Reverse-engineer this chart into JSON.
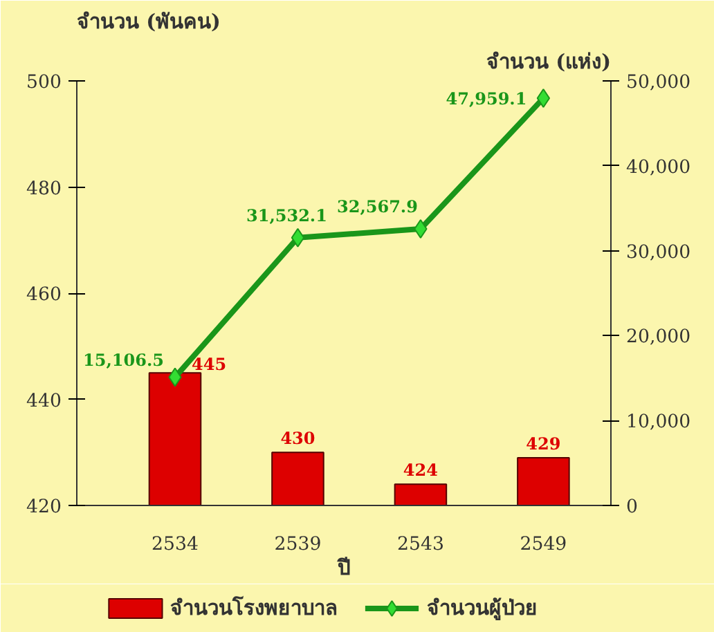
{
  "chart_data": {
    "type": "bar",
    "ylabel": "จำนวน (พันคน)",
    "y2label": "จำนวน (แห่ง)",
    "xlabel": "ปี",
    "categories": [
      "2534",
      "2539",
      "2543",
      "2549"
    ],
    "series": [
      {
        "name": "จำนวนโรงพยาบาล",
        "color": "#dd0000",
        "values": [
          445,
          430,
          424,
          429
        ],
        "value_labels": [
          "445",
          "430",
          "424",
          "429"
        ]
      },
      {
        "name": "จำนวนผู้ป่วย",
        "type": "line",
        "axis": "y2",
        "color": "#1a961a",
        "marker": "diamond",
        "values": [
          15106.5,
          31532.1,
          32567.9,
          47959.1
        ],
        "value_labels": [
          "15,106.5",
          "31,532.1",
          "32,567.9",
          "47,959.1"
        ]
      }
    ],
    "ylim": [
      420,
      500
    ],
    "yticks": [
      420,
      440,
      460,
      480,
      500
    ],
    "y2lim": [
      0,
      50000
    ],
    "y2ticks": [
      0,
      {
        "value": 10000,
        "label": "10,000"
      },
      {
        "value": 20000,
        "label": "20,000"
      },
      {
        "value": 30000,
        "label": "30,000"
      },
      {
        "value": 40000,
        "label": "40,000"
      },
      {
        "value": 50000,
        "label": "50,000"
      }
    ],
    "grid": false,
    "legend": "bottom"
  }
}
